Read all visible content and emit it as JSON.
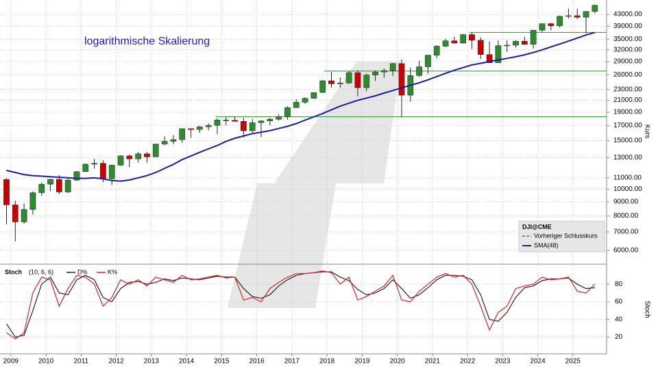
{
  "chart_data": [
    {
      "type": "candlestick",
      "annotation": "logarithmische Skalierung",
      "y_label": "Kurs",
      "legend_title": "DJI@CME",
      "legend_extra": "Vorheriger Schlusskurs",
      "log_scale": true,
      "grid": true,
      "up_color": "#2e8b2e",
      "down_color": "#cc0000",
      "xlim": [
        2008.69,
        2025.96
      ],
      "ylim": [
        5380,
        48500
      ],
      "yticks": [
        {
          "value": 6000,
          "label": "6000.00"
        },
        {
          "value": 7000,
          "label": "7000.00"
        },
        {
          "value": 8000,
          "label": "8000.00"
        },
        {
          "value": 9000,
          "label": "9000.00"
        },
        {
          "value": 10000,
          "label": "10000.00"
        },
        {
          "value": 11000,
          "label": "11000.00"
        },
        {
          "value": 13000,
          "label": "13000.00"
        },
        {
          "value": 15000,
          "label": "15000.00"
        },
        {
          "value": 17000,
          "label": "17000.00"
        },
        {
          "value": 19000,
          "label": "19000.00"
        },
        {
          "value": 21000,
          "label": "21000.00"
        },
        {
          "value": 23000,
          "label": "23000.00"
        },
        {
          "value": 26000,
          "label": "26000.00"
        },
        {
          "value": 29000,
          "label": "29000.00"
        },
        {
          "value": 32000,
          "label": "32000.00"
        },
        {
          "value": 35000,
          "label": "35000.00"
        },
        {
          "value": 39000,
          "label": "39000.00"
        },
        {
          "value": 43000,
          "label": "43000.00"
        }
      ],
      "horizontal_lines": {
        "color": "#2e8b2e",
        "lines": [
          {
            "value": 18300,
            "from": 2014.83
          },
          {
            "value": 26800,
            "from": 2017.92
          },
          {
            "value": 37000,
            "from": 2022.05
          }
        ]
      },
      "x": [
        2008.875,
        2009.125,
        2009.375,
        2009.625,
        2009.875,
        2010.125,
        2010.375,
        2010.625,
        2010.875,
        2011.125,
        2011.375,
        2011.625,
        2011.875,
        2012.125,
        2012.375,
        2012.625,
        2012.875,
        2013.125,
        2013.375,
        2013.625,
        2013.875,
        2014.125,
        2014.375,
        2014.625,
        2014.875,
        2015.125,
        2015.375,
        2015.625,
        2015.875,
        2016.125,
        2016.375,
        2016.625,
        2016.875,
        2017.125,
        2017.375,
        2017.625,
        2017.875,
        2018.125,
        2018.375,
        2018.625,
        2018.875,
        2019.125,
        2019.375,
        2019.625,
        2019.875,
        2020.125,
        2020.375,
        2020.625,
        2020.875,
        2021.125,
        2021.375,
        2021.625,
        2021.875,
        2022.125,
        2022.375,
        2022.625,
        2022.875,
        2023.125,
        2023.375,
        2023.625,
        2023.875,
        2024.125,
        2024.375,
        2024.625,
        2024.875,
        2025.125,
        2025.375,
        2025.625
      ],
      "open": [
        10850,
        8776,
        7609,
        8447,
        9712,
        10428,
        10857,
        9774,
        10788,
        11578,
        12320,
        12414,
        10913,
        12218,
        13212,
        12880,
        13437,
        13104,
        14579,
        14910,
        15130,
        16577,
        16458,
        16827,
        17043,
        17823,
        17776,
        17620,
        16285,
        17425,
        17685,
        17930,
        18308,
        19763,
        20663,
        21350,
        22405,
        24719,
        24103,
        24271,
        26458,
        23327,
        25929,
        26600,
        26917,
        28538,
        21917,
        25813,
        27782,
        30606,
        32982,
        34503,
        33844,
        36338,
        34678,
        30775,
        28726,
        33147,
        33274,
        34408,
        33508,
        37690,
        39807,
        39119,
        42330,
        42544,
        42002,
        44095
      ],
      "high": [
        11000,
        9088,
        8877,
        9829,
        10580,
        10907,
        11258,
        10948,
        11625,
        12391,
        12876,
        12753,
        12284,
        13289,
        13338,
        13653,
        13661,
        14585,
        15542,
        15709,
        16588,
        16588,
        16978,
        17350,
        18103,
        18289,
        18351,
        18137,
        17978,
        17790,
        18168,
        18668,
        19987,
        21169,
        21535,
        22420,
        24876,
        26617,
        25402,
        26770,
        26952,
        26241,
        26952,
        27399,
        28702,
        29568,
        27580,
        29199,
        30637,
        33259,
        35091,
        35631,
        36565,
        36952,
        35492,
        34281,
        34595,
        34712,
        34589,
        35679,
        37778,
        39889,
        40077,
        42628,
        45074,
        45073,
        44150,
        46714
      ],
      "low": [
        7450,
        6470,
        7500,
        8087,
        9487,
        9835,
        9614,
        9686,
        10711,
        11555,
        11862,
        10604,
        10362,
        12150,
        12035,
        12492,
        12471,
        13104,
        14434,
        14551,
        14719,
        15341,
        16015,
        16334,
        15855,
        17037,
        17576,
        15370,
        16013,
        15451,
        17063,
        17713,
        17884,
        19677,
        20379,
        21279,
        22405,
        23360,
        23344,
        24077,
        21713,
        22639,
        24680,
        25339,
        25743,
        18214,
        20735,
        25523,
        26143,
        29856,
        32717,
        33741,
        33785,
        32273,
        29653,
        28715,
        28661,
        31429,
        32586,
        33389,
        32327,
        37123,
        37612,
        38499,
        41563,
        41338,
        36612,
        43340
      ],
      "close": [
        8776,
        7609,
        8447,
        9712,
        10428,
        10857,
        9774,
        10788,
        11578,
        12320,
        12414,
        10913,
        12218,
        13212,
        12880,
        13437,
        13104,
        14579,
        14910,
        15130,
        16577,
        16458,
        16827,
        17043,
        17823,
        17776,
        17620,
        16285,
        17425,
        17685,
        17930,
        18308,
        19763,
        20663,
        21350,
        22405,
        24719,
        24103,
        24271,
        26458,
        23327,
        25929,
        26600,
        26917,
        28538,
        21917,
        25813,
        27782,
        30606,
        32982,
        34503,
        33844,
        36338,
        34678,
        30775,
        28726,
        33147,
        33274,
        34408,
        33508,
        37690,
        39807,
        39119,
        42330,
        42544,
        42002,
        44095,
        46398
      ],
      "series": [
        {
          "name": "SMA(48)",
          "color": "#1a1aa8",
          "values": [
            11700,
            11500,
            11300,
            11200,
            11150,
            11100,
            11050,
            11000,
            10950,
            10950,
            11000,
            10900,
            10750,
            10700,
            10800,
            11000,
            11200,
            11500,
            11900,
            12300,
            12800,
            13200,
            13600,
            14000,
            14400,
            14900,
            15300,
            15600,
            15900,
            16100,
            16300,
            16600,
            16900,
            17300,
            17800,
            18300,
            18800,
            19400,
            20000,
            20500,
            21000,
            21400,
            21800,
            22300,
            22800,
            23300,
            23800,
            24300,
            24900,
            25600,
            26300,
            27000,
            27600,
            28200,
            28600,
            29000,
            29400,
            29800,
            30200,
            30700,
            31300,
            32000,
            32800,
            33600,
            34400,
            35300,
            36200,
            37000
          ]
        }
      ]
    },
    {
      "type": "line",
      "title": "Stoch",
      "subtitle": "(10, 6, 6)",
      "y_label": "Stoch",
      "grid": true,
      "xlim": [
        2008.69,
        2025.96
      ],
      "xticks": [
        2009,
        2010,
        2011,
        2012,
        2013,
        2014,
        2015,
        2016,
        2017,
        2018,
        2019,
        2020,
        2021,
        2022,
        2023,
        2024,
        2025
      ],
      "ylim": [
        1,
        98
      ],
      "yticks": [
        20,
        40,
        60,
        80
      ],
      "x": [
        2008.875,
        2009.125,
        2009.375,
        2009.625,
        2009.875,
        2010.125,
        2010.375,
        2010.625,
        2010.875,
        2011.125,
        2011.375,
        2011.625,
        2011.875,
        2012.125,
        2012.375,
        2012.625,
        2012.875,
        2013.125,
        2013.375,
        2013.625,
        2013.875,
        2014.125,
        2014.375,
        2014.625,
        2014.875,
        2015.125,
        2015.375,
        2015.625,
        2015.875,
        2016.125,
        2016.375,
        2016.625,
        2016.875,
        2017.125,
        2017.375,
        2017.625,
        2017.875,
        2018.125,
        2018.375,
        2018.625,
        2018.875,
        2019.125,
        2019.375,
        2019.625,
        2019.875,
        2020.125,
        2020.375,
        2020.625,
        2020.875,
        2021.125,
        2021.375,
        2021.625,
        2021.875,
        2022.125,
        2022.375,
        2022.625,
        2022.875,
        2023.125,
        2023.375,
        2023.625,
        2023.875,
        2024.125,
        2024.375,
        2024.625,
        2024.875,
        2025.125,
        2025.375,
        2025.625
      ],
      "series": [
        {
          "name": "D%",
          "color": "#222222",
          "values": [
            35,
            20,
            22,
            50,
            80,
            88,
            70,
            68,
            85,
            90,
            85,
            65,
            60,
            75,
            82,
            83,
            80,
            82,
            86,
            84,
            87,
            86,
            85,
            87,
            89,
            88,
            88,
            75,
            66,
            64,
            68,
            78,
            85,
            90,
            92,
            93,
            94,
            94,
            88,
            84,
            74,
            68,
            70,
            75,
            85,
            75,
            64,
            68,
            76,
            85,
            90,
            90,
            89,
            85,
            68,
            40,
            38,
            48,
            65,
            76,
            78,
            84,
            86,
            86,
            87,
            80,
            75,
            76
          ]
        },
        {
          "name": "K%",
          "color": "#e02020",
          "values": [
            25,
            18,
            25,
            70,
            88,
            85,
            55,
            75,
            90,
            88,
            80,
            55,
            65,
            85,
            80,
            85,
            78,
            88,
            85,
            82,
            90,
            85,
            86,
            88,
            90,
            87,
            88,
            62,
            65,
            60,
            75,
            82,
            88,
            92,
            92,
            93,
            95,
            93,
            80,
            88,
            62,
            66,
            72,
            78,
            90,
            62,
            60,
            72,
            80,
            88,
            92,
            88,
            90,
            80,
            55,
            28,
            48,
            55,
            75,
            78,
            80,
            88,
            85,
            86,
            88,
            72,
            70,
            80
          ]
        }
      ]
    }
  ]
}
